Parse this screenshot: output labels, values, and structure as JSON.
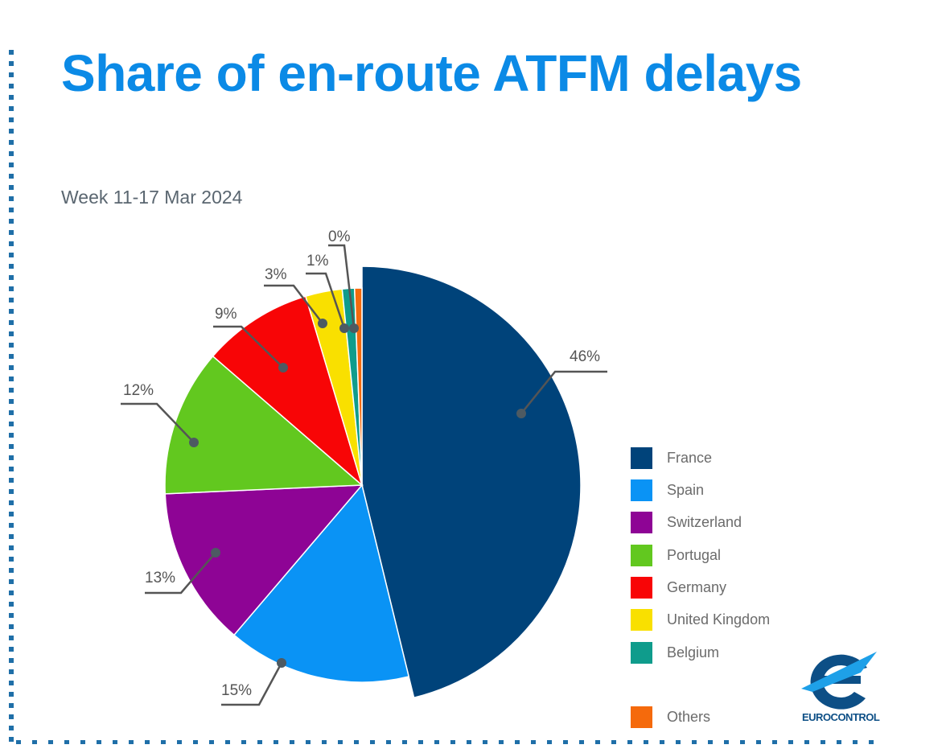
{
  "chart_data": {
    "type": "pie",
    "title": "Share of en-route ATFM delays",
    "subtitle": "Week 11-17 Mar 2024",
    "legend_placement": "right",
    "slices": [
      {
        "name": "France",
        "value": 46,
        "label": "46%",
        "color": "#00437a"
      },
      {
        "name": "Spain",
        "value": 15,
        "label": "15%",
        "color": "#0a93f5"
      },
      {
        "name": "Switzerland",
        "value": 13,
        "label": "13%",
        "color": "#8e0495"
      },
      {
        "name": "Portugal",
        "value": 12,
        "label": "12%",
        "color": "#62c81f"
      },
      {
        "name": "Germany",
        "value": 9,
        "label": "9%",
        "color": "#f80506"
      },
      {
        "name": "United Kingdom",
        "value": 3,
        "label": "3%",
        "color": "#f9e000"
      },
      {
        "name": "Belgium",
        "value": 1,
        "label": "1%",
        "color": "#0f9c8c"
      },
      {
        "name": "Others",
        "value": 0,
        "label": "0%",
        "color": "#f56a0c"
      }
    ]
  },
  "logo": {
    "text": "EUROCONTROL",
    "colors": [
      "#0d4f86",
      "#1ea0e8"
    ]
  }
}
